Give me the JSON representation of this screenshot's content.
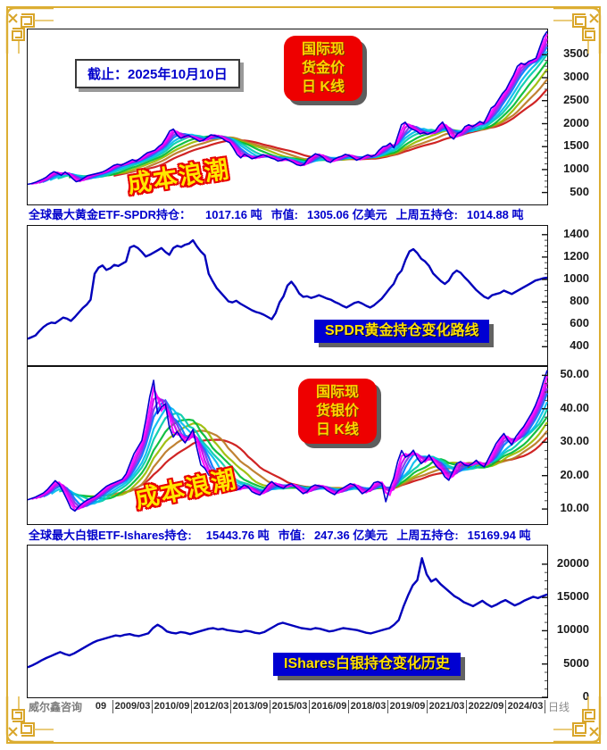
{
  "header": {
    "date_box": "截止：2025年10月10日"
  },
  "labels": {
    "gold_kline": [
      "国际现",
      "货金价",
      "日 K线"
    ],
    "silver_kline": [
      "国际现",
      "货银价",
      "日 K线"
    ],
    "cost_wave_gold": "成本浪潮",
    "cost_wave_silver": "成本浪潮",
    "spdr_route": "SPDR黄金持仓变化路线",
    "ishares_history": "IShares白银持仓变化历史"
  },
  "info_rows": {
    "gold": {
      "label": "全球最大黄金ETF-SPDR持仓：",
      "holdings": "1017.16 吨",
      "mv_label": "市值:",
      "mv": "1305.06 亿美元",
      "lf_label": "上周五持仓:",
      "lf": "1014.88 吨"
    },
    "silver": {
      "label": "全球最大白银ETF-Ishares持仓:",
      "holdings": "15443.76 吨",
      "mv_label": "市值:",
      "mv": "247.36 亿美元",
      "lf_label": "上周五持仓:",
      "lf": "15169.94 吨"
    }
  },
  "x_axis": {
    "source": "威尔鑫咨询",
    "ticks": [
      "09",
      "2009/03",
      "2010/09",
      "2012/03",
      "2013/09",
      "2015/03",
      "2016/09",
      "2018/03",
      "2019/09",
      "2021/03",
      "2022/09",
      "2024/03"
    ],
    "right_label": "日线"
  },
  "colors": {
    "frame_gold": "#dcae33",
    "price_line": "#0000cc",
    "holdings_line": "#0000bb",
    "badge_red": "#ee0000",
    "badge_blue": "#0000d2",
    "badge_text": "#ffd400",
    "info_text": "#0000cc"
  },
  "chart_data": [
    {
      "id": "gold",
      "type": "line",
      "title": "国际现货金价日K线",
      "ymin": 240,
      "ymax": 4050,
      "yticks": [
        500,
        1000,
        1500,
        2000,
        2500,
        3000,
        3500
      ],
      "decimals": 0,
      "color": "#0000cc",
      "line_width": 1.6,
      "ma_windows": [
        2,
        3,
        4,
        5,
        7,
        9,
        12,
        15,
        19,
        24
      ],
      "ma_colors": [
        "#ff00ff",
        "#cc00ee",
        "#7733ee",
        "#0077ff",
        "#00bbee",
        "#00ccaa",
        "#00bb33",
        "#99bb00",
        "#bb7722",
        "#cc1111"
      ],
      "values": [
        680,
        695,
        720,
        755,
        790,
        835,
        905,
        955,
        920,
        875,
        945,
        890,
        805,
        735,
        760,
        815,
        865,
        885,
        905,
        925,
        945,
        985,
        1035,
        1090,
        1115,
        1095,
        1135,
        1175,
        1215,
        1185,
        1240,
        1305,
        1365,
        1390,
        1420,
        1495,
        1560,
        1690,
        1840,
        1880,
        1745,
        1680,
        1720,
        1745,
        1700,
        1660,
        1615,
        1640,
        1700,
        1755,
        1740,
        1715,
        1680,
        1625,
        1590,
        1470,
        1330,
        1255,
        1330,
        1285,
        1235,
        1260,
        1295,
        1325,
        1290,
        1255,
        1230,
        1185,
        1205,
        1235,
        1195,
        1155,
        1105,
        1085,
        1115,
        1235,
        1285,
        1345,
        1315,
        1265,
        1185,
        1155,
        1225,
        1265,
        1290,
        1330,
        1305,
        1255,
        1205,
        1235,
        1285,
        1320,
        1285,
        1320,
        1420,
        1495,
        1515,
        1575,
        1475,
        1725,
        1975,
        2030,
        1920,
        1875,
        1840,
        1775,
        1805,
        1765,
        1805,
        1835,
        1955,
        2035,
        1885,
        1725,
        1665,
        1785,
        1825,
        1935,
        1975,
        1935,
        1985,
        2045,
        2005,
        2165,
        2335,
        2395,
        2525,
        2655,
        2745,
        2905,
        3055,
        3245,
        3315,
        3285,
        3355,
        3385,
        3425,
        3655,
        3885,
        4010
      ]
    },
    {
      "id": "spdr",
      "type": "line",
      "title": "SPDR黄金持仓变化路线",
      "ymin": 235,
      "ymax": 1478,
      "yticks": [
        400,
        600,
        800,
        1000,
        1200,
        1400
      ],
      "decimals": 0,
      "color": "#0000bb",
      "line_width": 2.4,
      "values": [
        470,
        485,
        500,
        540,
        575,
        600,
        615,
        610,
        635,
        660,
        650,
        630,
        665,
        705,
        745,
        775,
        820,
        1050,
        1105,
        1125,
        1085,
        1100,
        1130,
        1120,
        1140,
        1160,
        1285,
        1300,
        1280,
        1245,
        1205,
        1220,
        1240,
        1260,
        1280,
        1245,
        1220,
        1280,
        1300,
        1290,
        1310,
        1320,
        1350,
        1295,
        1250,
        1215,
        1050,
        985,
        925,
        885,
        845,
        805,
        795,
        810,
        785,
        765,
        745,
        725,
        710,
        700,
        685,
        665,
        645,
        700,
        795,
        850,
        945,
        980,
        935,
        875,
        845,
        850,
        835,
        845,
        860,
        845,
        830,
        820,
        800,
        785,
        765,
        750,
        770,
        790,
        800,
        785,
        765,
        750,
        770,
        800,
        830,
        875,
        920,
        960,
        1040,
        1080,
        1175,
        1250,
        1270,
        1235,
        1185,
        1160,
        1120,
        1055,
        1020,
        985,
        960,
        990,
        1050,
        1080,
        1060,
        1020,
        985,
        945,
        905,
        875,
        845,
        830,
        860,
        870,
        880,
        900,
        885,
        870,
        890,
        910,
        930,
        950,
        970,
        990,
        1000,
        1010,
        1017
      ]
    },
    {
      "id": "silver",
      "type": "line",
      "title": "国际现货银价日K线",
      "ymin": 5.5,
      "ymax": 52.5,
      "yticks": [
        10,
        20,
        30,
        40,
        50
      ],
      "decimals": 2,
      "color": "#0000cc",
      "line_width": 1.6,
      "ma_windows": [
        2,
        3,
        4,
        5,
        7,
        9,
        12,
        15,
        19,
        24
      ],
      "ma_colors": [
        "#ff00ff",
        "#cc00ee",
        "#7733ee",
        "#0077ff",
        "#00bbee",
        "#00ccaa",
        "#00bb33",
        "#99bb00",
        "#bb7722",
        "#cc1111"
      ],
      "values": [
        12.8,
        13.2,
        13.6,
        14.2,
        14.8,
        15.8,
        17.2,
        18.5,
        17.4,
        15.2,
        12.8,
        10.2,
        9.4,
        10.8,
        11.8,
        12.6,
        13.2,
        13.8,
        14.8,
        15.8,
        16.8,
        17.4,
        17.9,
        18.4,
        18.9,
        20.5,
        23.5,
        26.5,
        28.5,
        30.5,
        36.5,
        43.5,
        48.5,
        38.5,
        40.5,
        41.5,
        34.5,
        31.5,
        33.2,
        31.2,
        29.8,
        31.8,
        33.8,
        28.2,
        23.2,
        22.2,
        20.2,
        19.6,
        20.2,
        19.2,
        18.6,
        17.2,
        16.2,
        15.6,
        16.2,
        17.2,
        16.6,
        15.2,
        14.6,
        14.2,
        15.6,
        17.2,
        18.2,
        17.2,
        16.6,
        16.2,
        17.2,
        17.6,
        16.6,
        15.6,
        14.6,
        15.2,
        16.6,
        17.2,
        16.9,
        16.6,
        15.6,
        14.9,
        14.3,
        15.6,
        16.2,
        16.9,
        17.6,
        17.2,
        15.9,
        14.6,
        15.3,
        16.3,
        17.9,
        18.2,
        17.6,
        12.2,
        16.2,
        19.2,
        24.2,
        27.5,
        25.5,
        26.2,
        27.6,
        25.2,
        23.6,
        24.6,
        26.2,
        24.2,
        22.6,
        21.6,
        19.6,
        18.6,
        21.2,
        23.6,
        24.2,
        23.2,
        22.9,
        23.6,
        24.6,
        23.3,
        22.6,
        24.9,
        27.2,
        29.6,
        31.2,
        32.6,
        30.6,
        29.2,
        31.6,
        33.2,
        34.6,
        36.6,
        38.6,
        41.0,
        44.0,
        48.0,
        51.5
      ]
    },
    {
      "id": "ishares",
      "type": "line",
      "title": "IShares白银持仓变化历史",
      "ymin": 0,
      "ymax": 22800,
      "yticks": [
        0,
        5000,
        10000,
        15000,
        20000
      ],
      "decimals": 0,
      "color": "#0000bb",
      "line_width": 2.4,
      "values": [
        4500,
        4800,
        5150,
        5550,
        5900,
        6200,
        6500,
        6800,
        6500,
        6300,
        6600,
        7000,
        7400,
        7800,
        8200,
        8500,
        8700,
        8900,
        9100,
        9300,
        9200,
        9400,
        9500,
        9300,
        9200,
        9400,
        9600,
        10400,
        10900,
        10500,
        9900,
        9700,
        9600,
        9800,
        9700,
        9500,
        9700,
        9900,
        10100,
        10300,
        10400,
        10200,
        10300,
        10100,
        10000,
        9900,
        9800,
        10000,
        9900,
        9700,
        9600,
        9800,
        10200,
        10600,
        11000,
        11200,
        11000,
        10800,
        10600,
        10400,
        10300,
        10200,
        10400,
        10300,
        10100,
        9900,
        10000,
        10200,
        10400,
        10300,
        10200,
        10100,
        9900,
        9700,
        9600,
        9800,
        10000,
        10200,
        10400,
        10900,
        11600,
        13600,
        15300,
        16800,
        17600,
        20900,
        18500,
        17400,
        17800,
        17000,
        16400,
        15800,
        15200,
        14800,
        14300,
        14000,
        13700,
        14100,
        14500,
        14000,
        13600,
        13900,
        14300,
        14600,
        14200,
        13800,
        14100,
        14500,
        14800,
        15100,
        14900,
        15200,
        15444
      ]
    }
  ]
}
